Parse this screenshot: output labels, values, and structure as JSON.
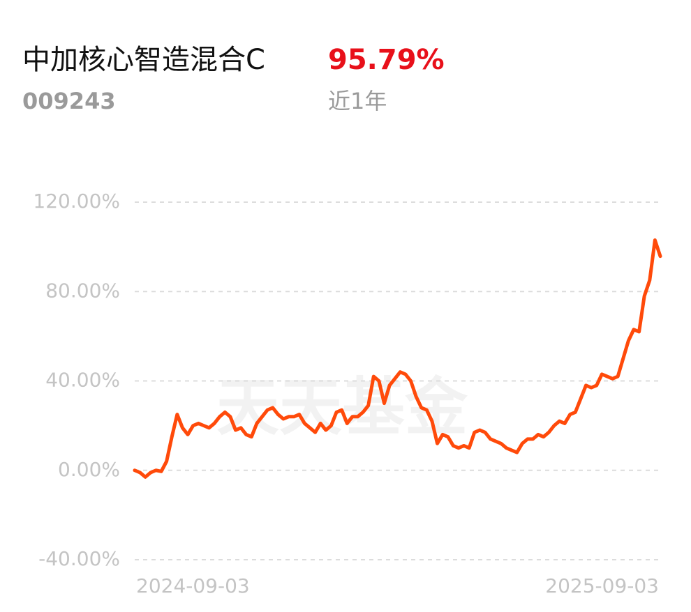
{
  "chart_data": {
    "type": "line",
    "title": "中加核心智造混合C",
    "subtitle": "009243",
    "annotations": [
      "95.79%",
      "近1年"
    ],
    "watermark": "天天基金",
    "categories": [
      "2024-09-03",
      null,
      null,
      null,
      null,
      null,
      null,
      null,
      null,
      null,
      null,
      null,
      null,
      null,
      null,
      null,
      null,
      null,
      null,
      null,
      null,
      null,
      null,
      null,
      null,
      null,
      null,
      null,
      null,
      null,
      null,
      null,
      null,
      null,
      null,
      null,
      null,
      null,
      null,
      null,
      null,
      null,
      null,
      null,
      null,
      null,
      null,
      null,
      null,
      null,
      null,
      null,
      null,
      null,
      null,
      null,
      null,
      null,
      null,
      null,
      null,
      null,
      null,
      null,
      null,
      null,
      null,
      null,
      null,
      null,
      null,
      null,
      null,
      null,
      null,
      null,
      null,
      null,
      null,
      null,
      null,
      null,
      null,
      null,
      null,
      null,
      null,
      null,
      null,
      null,
      null,
      null,
      null,
      null,
      null,
      null,
      null,
      null,
      null,
      "2025-09-03"
    ],
    "series": [
      {
        "color": "#ff4a0a",
        "values": [
          0,
          -1,
          -3,
          -1,
          0,
          -0.5,
          4,
          15,
          25,
          19,
          16,
          20,
          21,
          20,
          19,
          21,
          24,
          26,
          24,
          18,
          19,
          16,
          15,
          21,
          24,
          27,
          28,
          25,
          23,
          24,
          24,
          25,
          21,
          19,
          17,
          21,
          18,
          20,
          26,
          27,
          21,
          24,
          24,
          26,
          29,
          42,
          40,
          30,
          38,
          41,
          44,
          43,
          40,
          33,
          28,
          27,
          22,
          12,
          16,
          15,
          11,
          10,
          11,
          10,
          17,
          18,
          17,
          14,
          13,
          12,
          10,
          9,
          8,
          12,
          14,
          14,
          16,
          15,
          17,
          20,
          22,
          21,
          25,
          26,
          32,
          38,
          37,
          38,
          43,
          42,
          41,
          42,
          50,
          58,
          63,
          62,
          78,
          85,
          103,
          95.79
        ]
      }
    ],
    "ylim": [
      -40,
      120
    ],
    "yticks": [
      {
        "value": -40,
        "label": "-40.00%"
      },
      {
        "value": 0,
        "label": "0.00%"
      },
      {
        "value": 40,
        "label": "40.00%"
      },
      {
        "value": 80,
        "label": "80.00%"
      },
      {
        "value": 120,
        "label": "120.00%"
      }
    ],
    "grid": true
  }
}
